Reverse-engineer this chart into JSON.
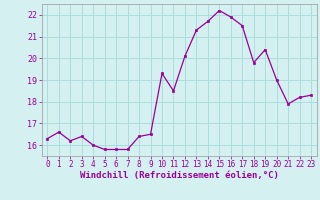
{
  "x": [
    0,
    1,
    2,
    3,
    4,
    5,
    6,
    7,
    8,
    9,
    10,
    11,
    12,
    13,
    14,
    15,
    16,
    17,
    18,
    19,
    20,
    21,
    22,
    23
  ],
  "y": [
    16.3,
    16.6,
    16.2,
    16.4,
    16.0,
    15.8,
    15.8,
    15.8,
    16.4,
    16.5,
    19.3,
    18.5,
    20.1,
    21.3,
    21.7,
    22.2,
    21.9,
    21.5,
    19.8,
    20.4,
    19.0,
    17.9,
    18.2,
    18.3
  ],
  "bg_color": "#d4f0f0",
  "grid_color": "#aadddd",
  "line_color": "#990099",
  "marker_color": "#990099",
  "xlabel": "Windchill (Refroidissement éolien,°C)",
  "ylim": [
    15.5,
    22.5
  ],
  "xlim": [
    -0.5,
    23.5
  ],
  "yticks": [
    16,
    17,
    18,
    19,
    20,
    21,
    22
  ],
  "xticks": [
    0,
    1,
    2,
    3,
    4,
    5,
    6,
    7,
    8,
    9,
    10,
    11,
    12,
    13,
    14,
    15,
    16,
    17,
    18,
    19,
    20,
    21,
    22,
    23
  ],
  "tick_color": "#990099",
  "label_fontsize": 5.5,
  "xlabel_fontsize": 6.5
}
